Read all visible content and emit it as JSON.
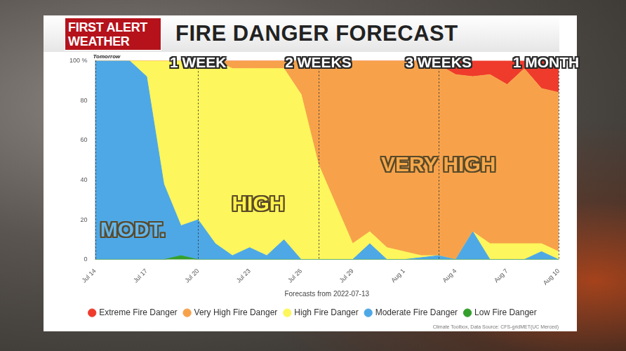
{
  "header": {
    "logo": "FIRST ALERT WEATHER"
  },
  "chart_data": {
    "type": "area",
    "title": "FIRE DANGER FORECAST",
    "x_label": "Forecasts from 2022-07-13",
    "source": "Climate Toolbox, Data Source: CFS-gridMET(UC Merced)",
    "annotations": [
      "1 WEEK",
      "2 WEEKS",
      "3 WEEKS",
      "1 MONTH",
      "Tomorrow",
      "MODT.",
      "HIGH",
      "VERY HIGH"
    ],
    "categories": [
      "Jul 14",
      null,
      null,
      "Jul 17",
      null,
      null,
      "Jul 20",
      null,
      null,
      "Jul 23",
      null,
      null,
      "Jul 26",
      null,
      null,
      "Jul 29",
      null,
      null,
      "Aug 1",
      null,
      null,
      "Aug 4",
      null,
      null,
      "Aug 7",
      null,
      null,
      "Aug 10"
    ],
    "series": [
      {
        "name": "Low Fire Danger",
        "color": "#33a02c",
        "values": [
          0,
          0,
          0,
          0,
          0,
          2,
          0,
          0,
          0,
          0,
          0,
          0,
          0,
          0,
          0,
          0,
          0,
          0,
          0,
          0,
          0,
          0,
          0,
          0,
          0,
          0,
          0,
          0
        ]
      },
      {
        "name": "Moderate Fire Danger",
        "color": "#4ea8e6",
        "values": [
          100,
          100,
          100,
          92,
          38,
          15,
          20,
          8,
          2,
          6,
          2,
          10,
          0,
          0,
          0,
          0,
          8,
          0,
          0,
          1,
          2,
          0,
          14,
          0,
          0,
          0,
          4,
          0
        ]
      },
      {
        "name": "High Fire Danger",
        "color": "#fdf65c",
        "values": [
          0,
          0,
          0,
          8,
          62,
          83,
          80,
          92,
          94,
          90,
          94,
          86,
          83,
          48,
          28,
          8,
          6,
          6,
          4,
          1,
          0,
          0,
          0,
          8,
          8,
          8,
          4,
          4
        ]
      },
      {
        "name": "Very High Fire Danger",
        "color": "#f7a24b",
        "values": [
          0,
          0,
          0,
          0,
          0,
          0,
          0,
          0,
          4,
          4,
          4,
          4,
          17,
          52,
          72,
          92,
          86,
          94,
          96,
          98,
          96,
          93,
          78,
          85,
          80,
          88,
          78,
          80
        ]
      },
      {
        "name": "Extreme Fire Danger",
        "color": "#ef3b2c",
        "values": [
          0,
          0,
          0,
          0,
          0,
          0,
          0,
          0,
          0,
          0,
          0,
          0,
          0,
          0,
          0,
          0,
          0,
          0,
          0,
          0,
          2,
          7,
          8,
          7,
          12,
          4,
          14,
          16
        ]
      }
    ],
    "ylim": [
      0,
      100
    ],
    "yticks": [
      0,
      20,
      40,
      60,
      80,
      {
        "value": 100,
        "label": "100 %"
      }
    ],
    "stacked": true,
    "grid": false,
    "legend": "bottom"
  }
}
